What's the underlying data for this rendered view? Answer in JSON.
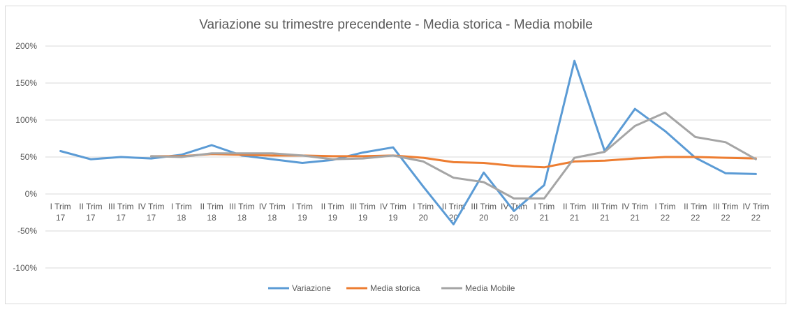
{
  "chart_data": {
    "type": "line",
    "title": "Variazione su trimestre precendente - Media storica  - Media mobile",
    "xlabel": "",
    "ylabel": "",
    "ylim": [
      -1.0,
      2.0
    ],
    "yticks": [
      2.0,
      1.5,
      1.0,
      0.5,
      0.0,
      -0.5,
      -1.0
    ],
    "ytick_labels": [
      "200%",
      "150%",
      "100%",
      "50%",
      "0%",
      "-50%",
      "-100%"
    ],
    "grid": true,
    "legend_position": "bottom",
    "categories": [
      [
        "I Trim",
        "17"
      ],
      [
        "II Trim",
        "17"
      ],
      [
        "III Trim",
        "17"
      ],
      [
        "IV Trim",
        "17"
      ],
      [
        "I Trim",
        "18"
      ],
      [
        "II Trim",
        "18"
      ],
      [
        "III Trim",
        "18"
      ],
      [
        "IV Trim",
        "18"
      ],
      [
        "I Trim",
        "19"
      ],
      [
        "II Trim",
        "19"
      ],
      [
        "III Trim",
        "19"
      ],
      [
        "IV Trim",
        "19"
      ],
      [
        "I Trim",
        "20"
      ],
      [
        "II Trim",
        "20"
      ],
      [
        "III Trim",
        "20"
      ],
      [
        "IV Trim",
        "20"
      ],
      [
        "I Trim",
        "21"
      ],
      [
        "II Trim",
        "21"
      ],
      [
        "III Trim",
        "21"
      ],
      [
        "IV Trim",
        "21"
      ],
      [
        "I Trim",
        "22"
      ],
      [
        "II Trim",
        "22"
      ],
      [
        "III Trim",
        "22"
      ],
      [
        "IV Trim",
        "22"
      ]
    ],
    "series": [
      {
        "name": "Variazione",
        "color": "#5b9bd5",
        "values": [
          0.58,
          0.47,
          0.5,
          0.48,
          0.53,
          0.66,
          0.52,
          0.47,
          0.42,
          0.46,
          0.56,
          0.63,
          0.1,
          -0.41,
          0.29,
          -0.23,
          0.12,
          1.8,
          0.58,
          1.15,
          0.85,
          0.49,
          0.28,
          0.27
        ]
      },
      {
        "name": "Media storica",
        "color": "#ed7d31",
        "values": [
          null,
          null,
          null,
          0.51,
          0.51,
          0.54,
          0.53,
          0.52,
          0.52,
          0.51,
          0.51,
          0.52,
          0.49,
          0.43,
          0.42,
          0.38,
          0.36,
          0.44,
          0.45,
          0.48,
          0.5,
          0.5,
          0.49,
          0.48
        ]
      },
      {
        "name": "Media Mobile",
        "color": "#a5a5a5",
        "values": [
          null,
          null,
          null,
          0.51,
          0.5,
          0.55,
          0.55,
          0.55,
          0.52,
          0.47,
          0.48,
          0.52,
          0.44,
          0.22,
          0.16,
          -0.06,
          -0.06,
          0.49,
          0.57,
          0.92,
          1.1,
          0.77,
          0.7,
          0.47
        ]
      }
    ]
  }
}
